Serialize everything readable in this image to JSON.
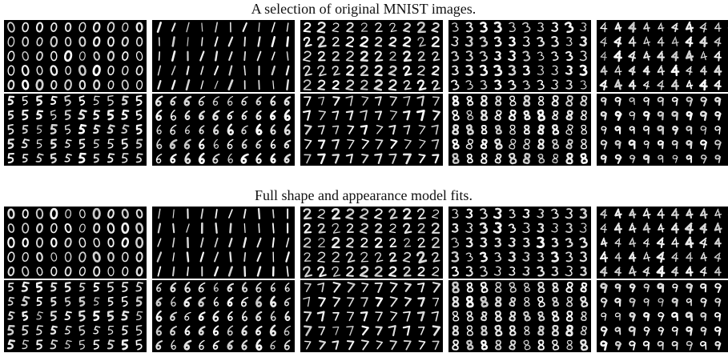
{
  "sections": [
    {
      "title": "A selection of original MNIST images."
    },
    {
      "title": "Full shape and appearance model fits."
    }
  ]
}
